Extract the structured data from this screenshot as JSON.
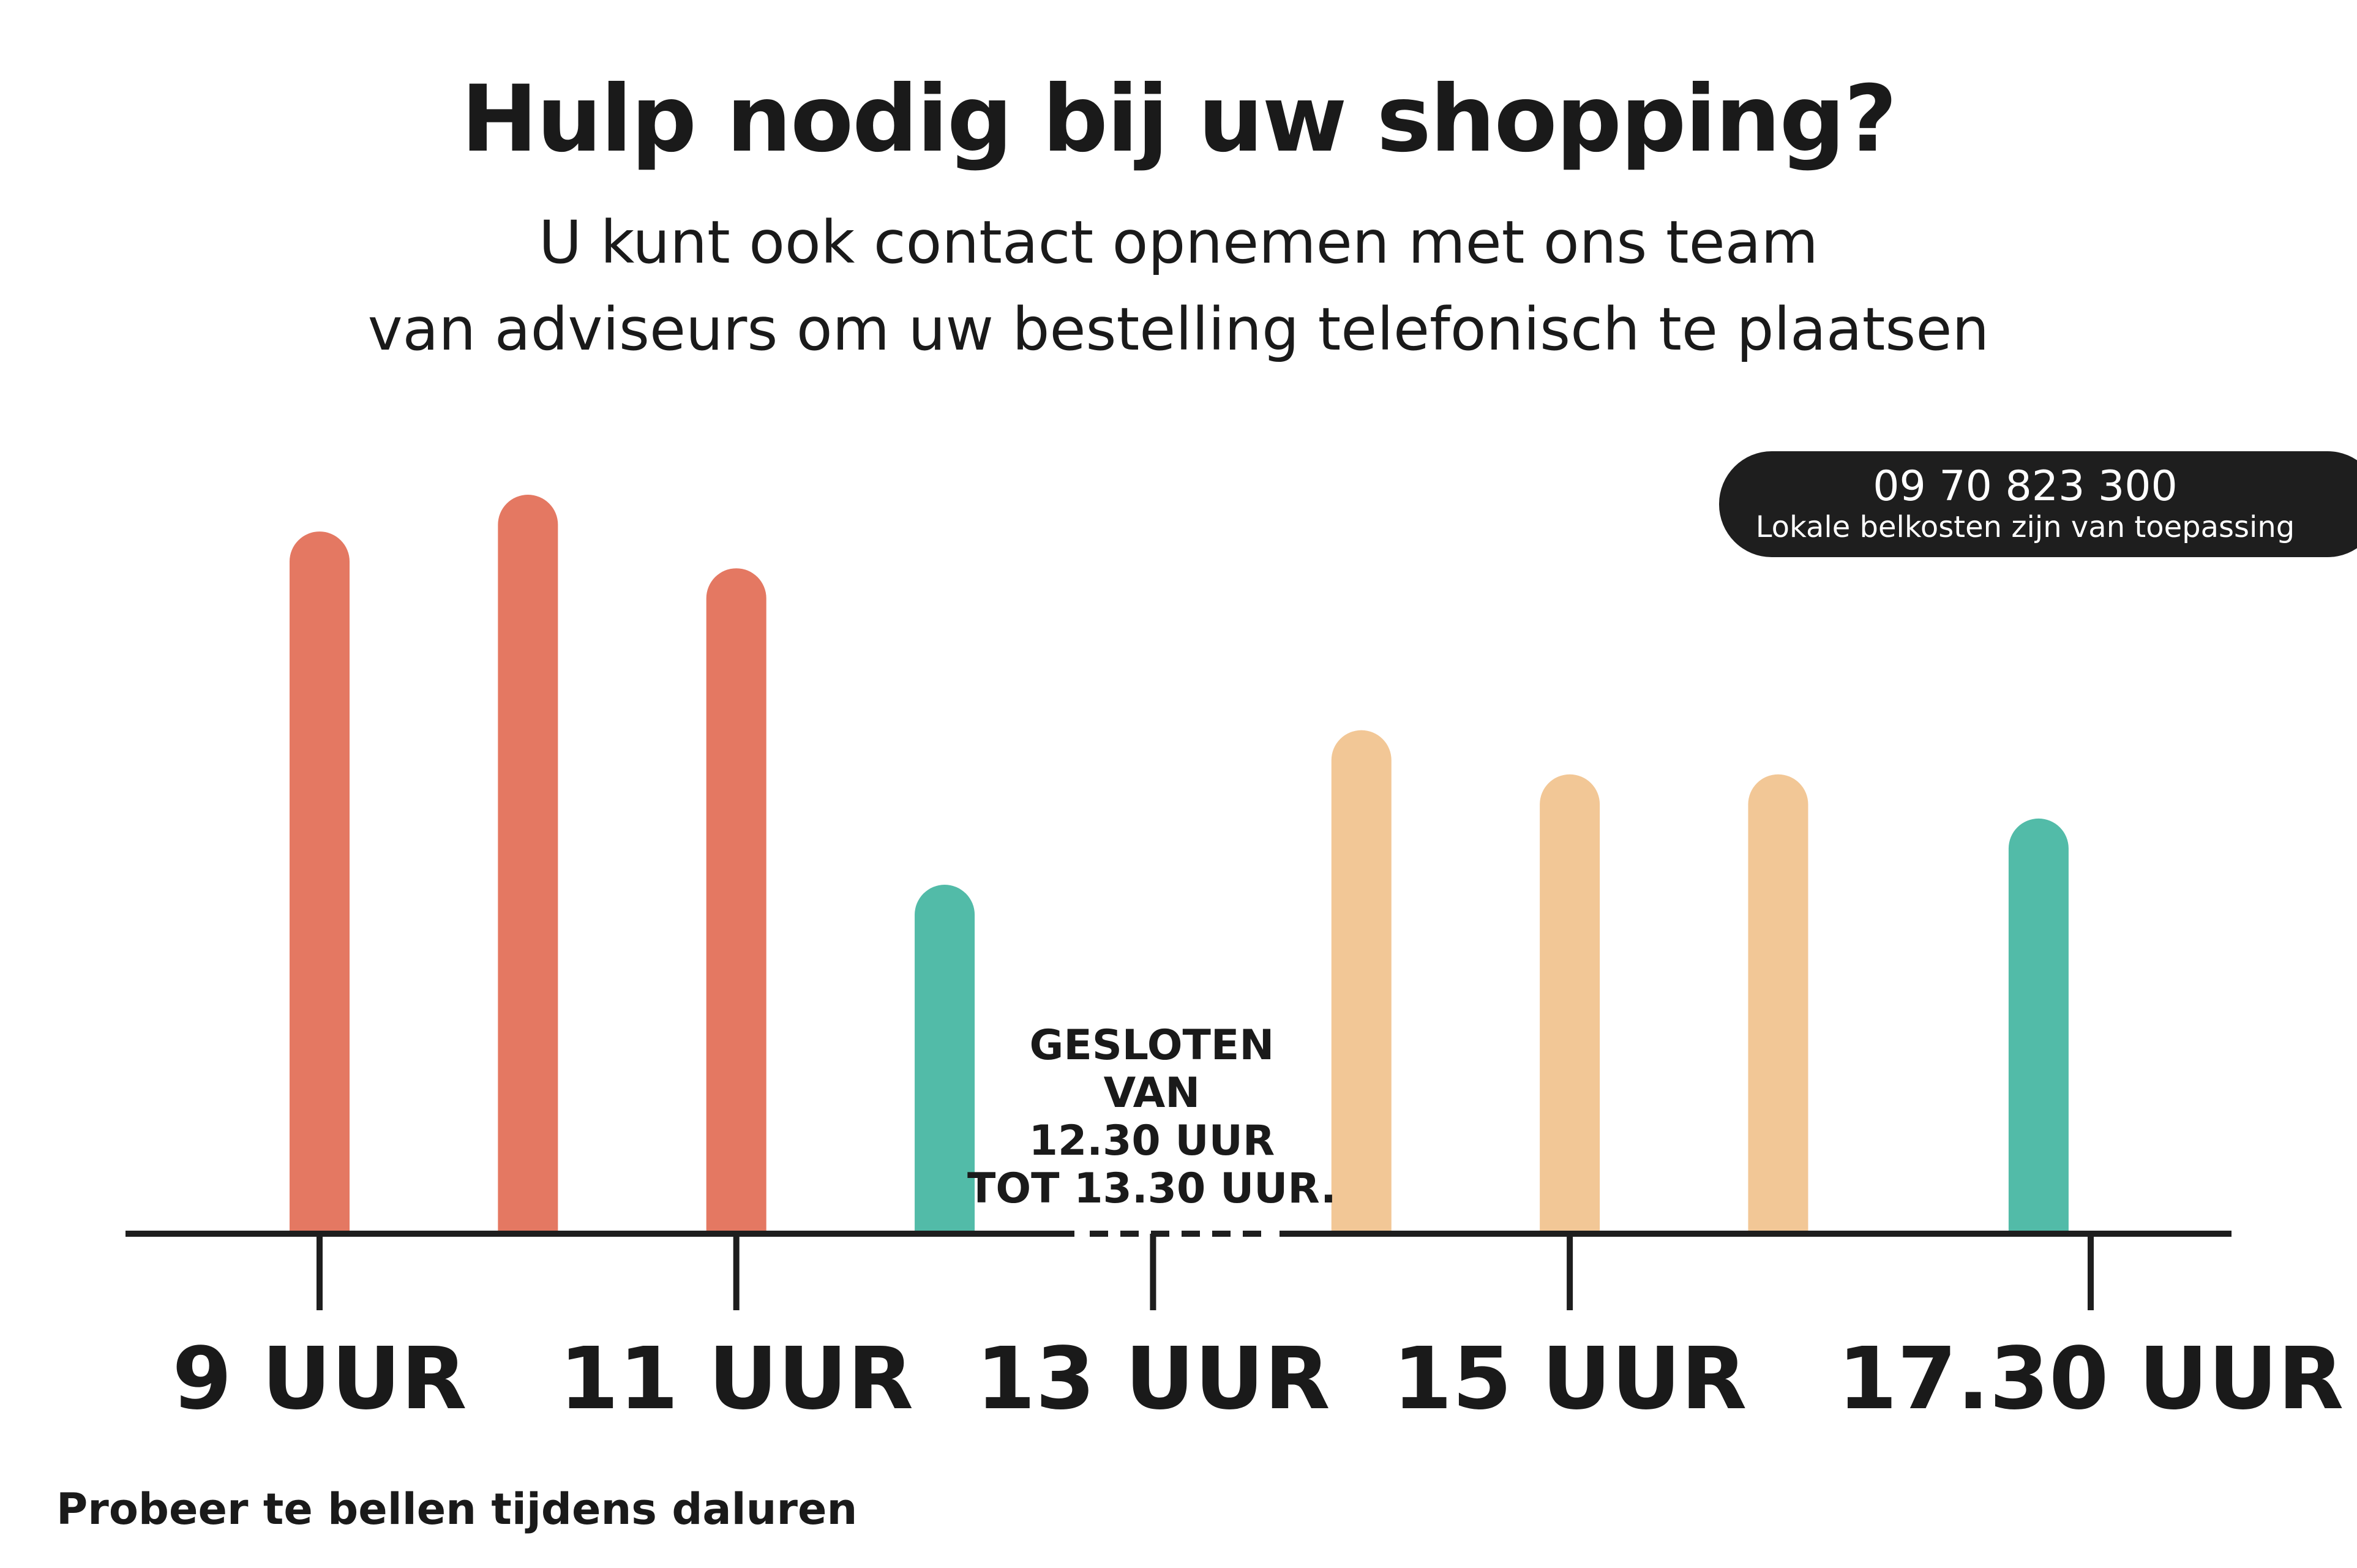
{
  "header": {
    "title": "Hulp nodig bij uw shopping?",
    "subtitle_line1": "U kunt ook contact opnemen met ons team",
    "subtitle_line2": "van adviseurs om uw bestelling telefonisch te plaatsen"
  },
  "phone": {
    "number": "09 70 823 300",
    "note": "Lokale belkosten zijn van toepassing"
  },
  "footnote": "Probeer te bellen tijdens daluren",
  "colors": {
    "busy": "#E47862",
    "moderate": "#F2C796",
    "quiet": "#52BBA8",
    "axis": "#1e1e1e"
  },
  "chart_data": {
    "type": "bar",
    "x_range": [
      9,
      17.5
    ],
    "y_range": [
      0,
      100
    ],
    "tick_labels": [
      {
        "time": 9,
        "label": "9 UUR"
      },
      {
        "time": 11,
        "label": "11 UUR"
      },
      {
        "time": 13,
        "label": "13 UUR"
      },
      {
        "time": 15,
        "label": "15 UUR"
      },
      {
        "time": 17.5,
        "label": "17.30 UUR"
      }
    ],
    "bars": [
      {
        "time": 9,
        "value": 95,
        "level": "busy"
      },
      {
        "time": 10,
        "value": 100,
        "level": "busy"
      },
      {
        "time": 11,
        "value": 90,
        "level": "busy"
      },
      {
        "time": 12,
        "value": 47,
        "level": "quiet"
      },
      {
        "time": 14,
        "value": 68,
        "level": "moderate"
      },
      {
        "time": 15,
        "value": 62,
        "level": "moderate"
      },
      {
        "time": 16,
        "value": 62,
        "level": "moderate"
      },
      {
        "time": 17.25,
        "value": 56,
        "level": "quiet"
      }
    ],
    "closed_period": {
      "from": 12.5,
      "to": 13.5,
      "label_lines": [
        "GESLOTEN",
        "VAN",
        "12.30 UUR",
        "TOT 13.30 UUR."
      ]
    }
  }
}
